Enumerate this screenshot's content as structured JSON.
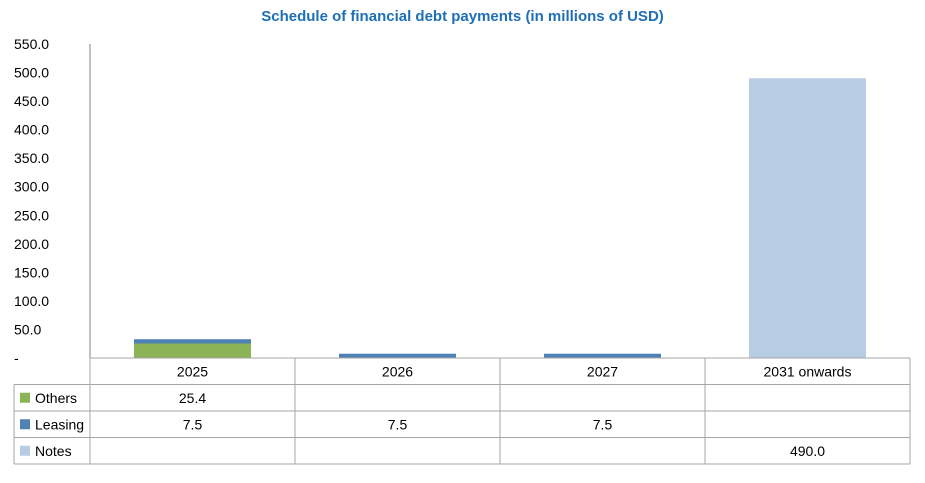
{
  "chart_data": {
    "type": "bar",
    "stacked": true,
    "title": "Schedule of financial debt payments (in millions of USD)",
    "categories": [
      "2025",
      "2026",
      "2027",
      "2031 onwards"
    ],
    "ylim": [
      0,
      550
    ],
    "yticks": [
      "-",
      "50.0",
      "100.0",
      "150.0",
      "200.0",
      "250.0",
      "300.0",
      "350.0",
      "400.0",
      "450.0",
      "500.0",
      "550.0"
    ],
    "grid": false,
    "legend": "data-table",
    "series": [
      {
        "name": "Others",
        "color": "#8db357",
        "values": [
          25.4,
          null,
          null,
          null
        ],
        "labels": [
          "25.4",
          "",
          "",
          ""
        ]
      },
      {
        "name": "Leasing",
        "color": "#4f81b4",
        "values": [
          7.5,
          7.5,
          7.5,
          null
        ],
        "labels": [
          "7.5",
          "7.5",
          "7.5",
          ""
        ]
      },
      {
        "name": "Notes",
        "color": "#b8cce4",
        "values": [
          null,
          null,
          null,
          490.0
        ],
        "labels": [
          "",
          "",
          "",
          "490.0"
        ]
      }
    ]
  }
}
